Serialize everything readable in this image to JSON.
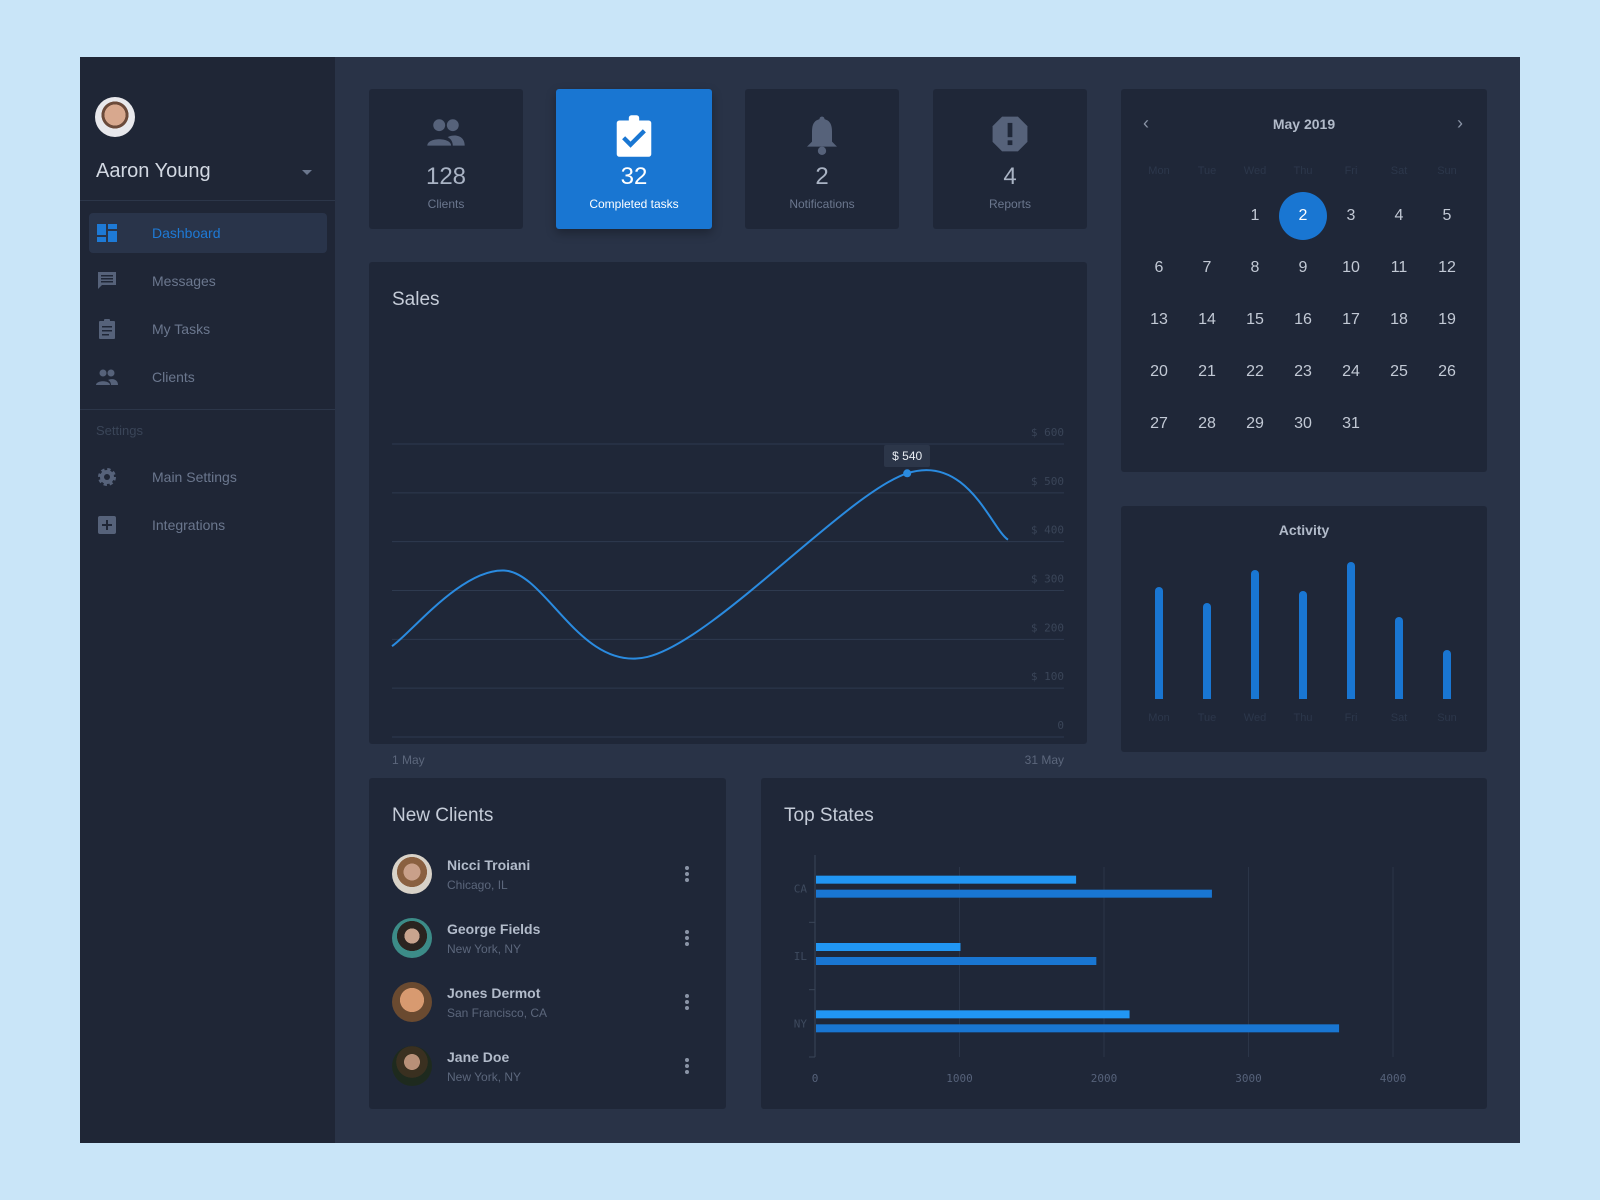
{
  "user": {
    "name": "Aaron Young"
  },
  "sidebar": {
    "items": [
      {
        "label": "Dashboard",
        "icon": "dashboard-icon",
        "active": true
      },
      {
        "label": "Messages",
        "icon": "message-icon"
      },
      {
        "label": "My Tasks",
        "icon": "clipboard-icon"
      },
      {
        "label": "Clients",
        "icon": "people-icon"
      }
    ],
    "settings_header": "Settings",
    "settings_items": [
      {
        "label": "Main Settings",
        "icon": "gear-icon"
      },
      {
        "label": "Integrations",
        "icon": "plus-box-icon"
      }
    ]
  },
  "stats": [
    {
      "value": "128",
      "label": "Clients",
      "icon": "people-icon"
    },
    {
      "value": "32",
      "label": "Completed tasks",
      "icon": "clipboard-check-icon",
      "active": true
    },
    {
      "value": "2",
      "label": "Notifications",
      "icon": "bell-icon"
    },
    {
      "value": "4",
      "label": "Reports",
      "icon": "alert-octagon-icon"
    }
  ],
  "sales": {
    "title": "Sales",
    "tooltip": "$ 540"
  },
  "calendar": {
    "month": "May 2019",
    "dow": [
      "Mon",
      "Tue",
      "Wed",
      "Thu",
      "Fri",
      "Sat",
      "Sun"
    ],
    "first_weekday_index": 2,
    "days": 31,
    "selected": 2
  },
  "new_clients": {
    "title": "New Clients",
    "items": [
      {
        "name": "Nicci Troiani",
        "location": "Chicago, IL"
      },
      {
        "name": "George Fields",
        "location": "New York, NY"
      },
      {
        "name": "Jones Dermot",
        "location": "San Francisco, CA"
      },
      {
        "name": "Jane Doe",
        "location": "New York, NY"
      }
    ]
  },
  "colors": {
    "accent": "#1976d2",
    "accent_light": "#2196f3",
    "card": "#1f2738",
    "background": "#293347"
  },
  "chart_data": [
    {
      "type": "line",
      "title": "Sales",
      "x_labels": [
        "1 May",
        "31 May"
      ],
      "y_ticks": [
        "0",
        "$ 100",
        "$ 200",
        "$ 300",
        "$ 400",
        "$ 500",
        "$ 600"
      ],
      "ylim": [
        0,
        600
      ],
      "xlim": [
        1,
        31
      ],
      "grid": true,
      "x": [
        1,
        6,
        12.4,
        24,
        28.5
      ],
      "y": [
        186,
        341,
        164,
        540,
        404
      ],
      "highlight": {
        "x": 24,
        "y": 540,
        "label": "$ 540"
      }
    },
    {
      "type": "bar",
      "title": "Activity",
      "categories": [
        "Mon",
        "Tue",
        "Wed",
        "Thu",
        "Fri",
        "Sat",
        "Sun"
      ],
      "values": [
        82,
        70,
        94,
        79,
        100,
        60,
        36
      ]
    },
    {
      "type": "bar",
      "orientation": "horizontal",
      "title": "Top States",
      "categories": [
        "CA",
        "IL",
        "NY"
      ],
      "series": [
        {
          "values": [
            1800,
            1000,
            2170
          ]
        },
        {
          "values": [
            2740,
            1940,
            3620
          ]
        }
      ],
      "x_ticks": [
        "0",
        "1000",
        "2000",
        "3000",
        "4000"
      ],
      "xlim": [
        0,
        4000
      ],
      "grid": true
    }
  ]
}
